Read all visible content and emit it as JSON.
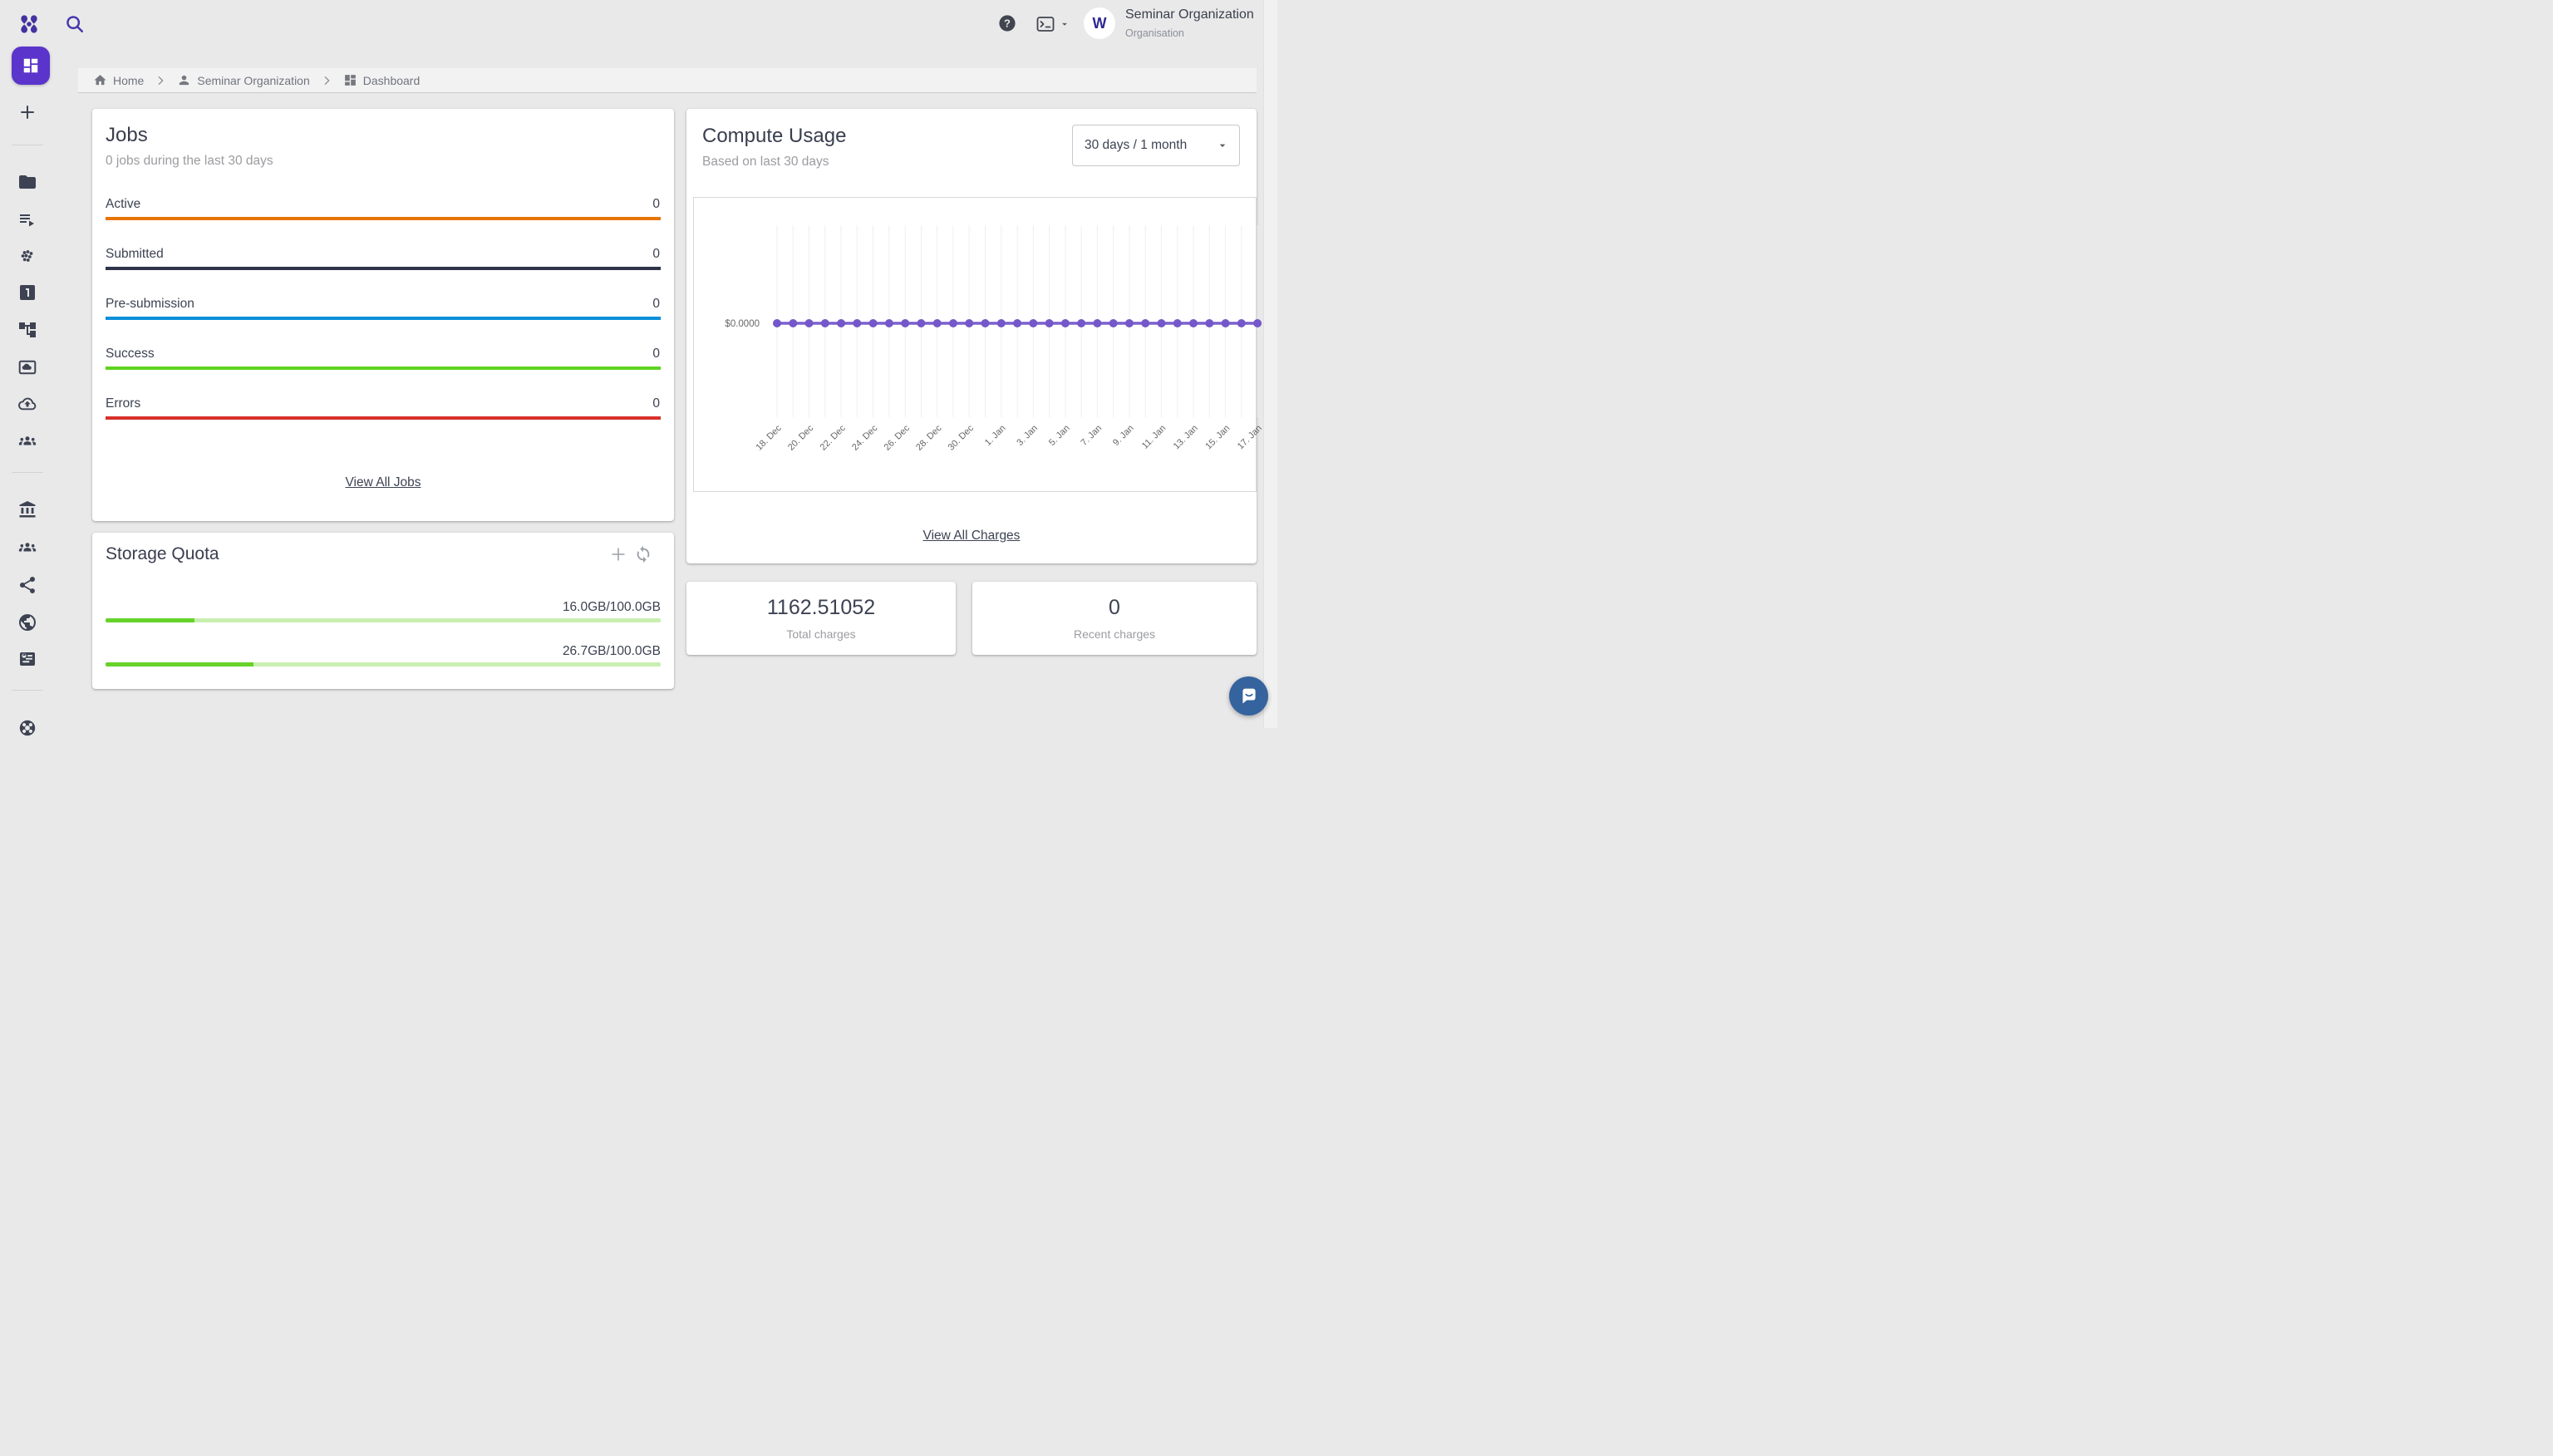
{
  "topbar": {
    "org_name": "Seminar Organization",
    "org_type": "Organisation",
    "avatar_letter": "W"
  },
  "breadcrumb": {
    "items": [
      {
        "icon": "home-icon",
        "label": "Home"
      },
      {
        "icon": "person-icon",
        "label": "Seminar Organization"
      },
      {
        "icon": "dashboard-icon",
        "label": "Dashboard"
      }
    ]
  },
  "sidebar": {
    "items": [
      {
        "type": "tile",
        "icon": "dashboard-icon"
      },
      {
        "type": "icon",
        "icon": "add-icon"
      },
      {
        "type": "divider"
      },
      {
        "type": "icon",
        "icon": "folder-icon"
      },
      {
        "type": "icon",
        "icon": "playlist-icon"
      },
      {
        "type": "icon",
        "icon": "scatter-dots-icon"
      },
      {
        "type": "icon",
        "icon": "looks-one-icon"
      },
      {
        "type": "icon",
        "icon": "org-tree-icon"
      },
      {
        "type": "icon",
        "icon": "image-icon"
      },
      {
        "type": "icon",
        "icon": "cloud-upload-icon"
      },
      {
        "type": "icon",
        "icon": "groups-icon"
      },
      {
        "type": "divider"
      },
      {
        "type": "icon",
        "icon": "bank-icon"
      },
      {
        "type": "icon",
        "icon": "groups-icon"
      },
      {
        "type": "icon",
        "icon": "share-icon"
      },
      {
        "type": "icon",
        "icon": "globe-icon"
      },
      {
        "type": "icon",
        "icon": "world-card-icon"
      },
      {
        "type": "divider"
      },
      {
        "type": "icon",
        "icon": "wheel-icon"
      }
    ]
  },
  "jobs": {
    "title": "Jobs",
    "subtitle": "0 jobs during the last 30 days",
    "rows": [
      {
        "label": "Active",
        "value": "0",
        "color": "#e87400"
      },
      {
        "label": "Submitted",
        "value": "0",
        "color": "#2e3349"
      },
      {
        "label": "Pre-submission",
        "value": "0",
        "color": "#0d8fd9"
      },
      {
        "label": "Success",
        "value": "0",
        "color": "#5fd321"
      },
      {
        "label": "Errors",
        "value": "0",
        "color": "#d8302b"
      }
    ],
    "link": "View All Jobs"
  },
  "storage": {
    "title": "Storage Quota",
    "quotas": [
      {
        "label": "16.0GB/100.0GB",
        "percent": 16.0
      },
      {
        "label": "26.7GB/100.0GB",
        "percent": 26.7
      }
    ]
  },
  "compute": {
    "title": "Compute Usage",
    "subtitle": "Based on last 30 days",
    "range_selector": "30 days / 1 month",
    "link": "View All Charges"
  },
  "chart_data": {
    "type": "line",
    "title": "Compute Usage",
    "x": [
      "18. Dec",
      "19. Dec",
      "20. Dec",
      "21. Dec",
      "22. Dec",
      "23. Dec",
      "24. Dec",
      "25. Dec",
      "26. Dec",
      "27. Dec",
      "28. Dec",
      "29. Dec",
      "30. Dec",
      "31. Dec",
      "1. Jan",
      "2. Jan",
      "3. Jan",
      "4. Jan",
      "5. Jan",
      "6. Jan",
      "7. Jan",
      "8. Jan",
      "9. Jan",
      "10. Jan",
      "11. Jan",
      "12. Jan",
      "13. Jan",
      "14. Jan",
      "15. Jan",
      "16. Jan",
      "17. Jan"
    ],
    "values": [
      0,
      0,
      0,
      0,
      0,
      0,
      0,
      0,
      0,
      0,
      0,
      0,
      0,
      0,
      0,
      0,
      0,
      0,
      0,
      0,
      0,
      0,
      0,
      0,
      0,
      0,
      0,
      0,
      0,
      0,
      0
    ],
    "tick_labels": [
      "18. Dec",
      "20. Dec",
      "22. Dec",
      "24. Dec",
      "26. Dec",
      "28. Dec",
      "30. Dec",
      "1. Jan",
      "3. Jan",
      "5. Jan",
      "7. Jan",
      "9. Jan",
      "11. Jan",
      "13. Jan",
      "15. Jan",
      "17. Jan"
    ],
    "y_tick_label": "$0.0000",
    "ylim": [
      0,
      1
    ],
    "grid": "vertical",
    "legend": "none",
    "line_color": "#7b5fd0",
    "marker_color": "#7457ca"
  },
  "stats": [
    {
      "value": "1162.51052",
      "label": "Total charges"
    },
    {
      "value": "0",
      "label": "Recent charges"
    }
  ],
  "colors": {
    "accent_purple": "#5a34cb",
    "brand_purple": "#43339f",
    "slate_icon": "#3d4352",
    "quota_fill": "#66d22a",
    "quota_track": "#c9efb0",
    "chat_blue": "#35639e"
  }
}
